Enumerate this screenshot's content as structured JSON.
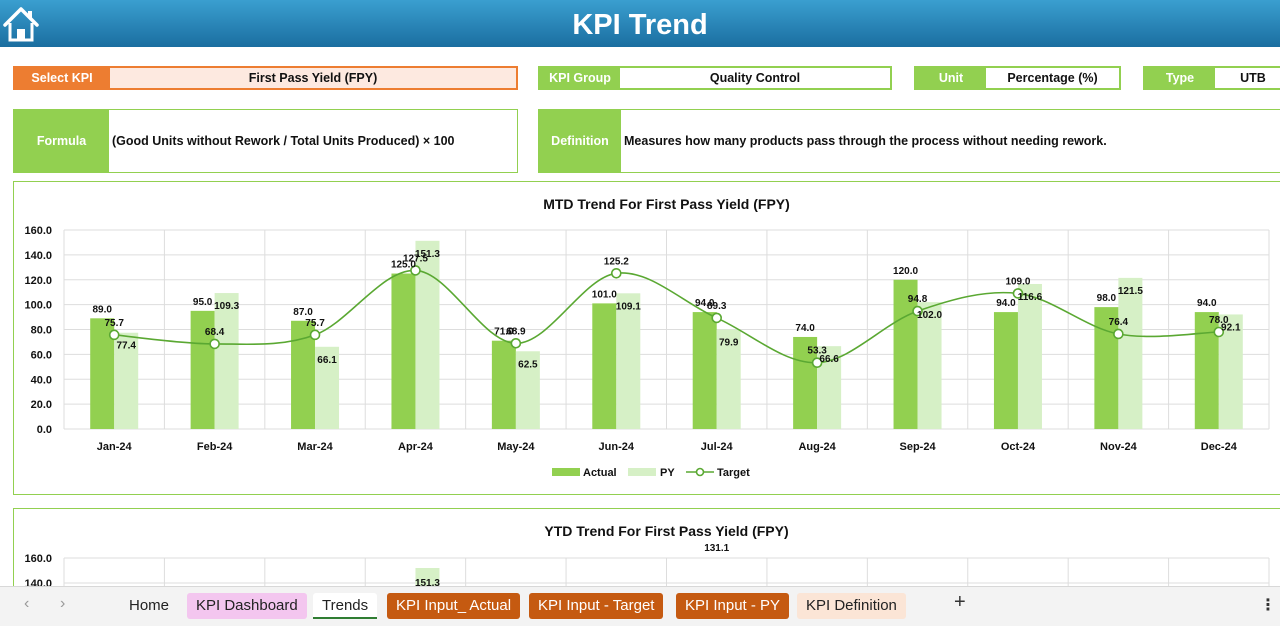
{
  "header": {
    "title": "KPI Trend",
    "home_icon": "house-icon"
  },
  "fields": {
    "select_kpi": {
      "label": "Select KPI",
      "value": "First Pass Yield (FPY)"
    },
    "kpi_group": {
      "label": "KPI Group",
      "value": "Quality Control"
    },
    "unit": {
      "label": "Unit",
      "value": "Percentage (%)"
    },
    "type": {
      "label": "Type",
      "value": "UTB"
    },
    "formula": {
      "label": "Formula",
      "value": "(Good Units without Rework / Total Units Produced) × 100"
    },
    "definition": {
      "label": "Definition",
      "value": "Measures how many products pass through the process without needing rework."
    }
  },
  "colors": {
    "actual": "#92d050",
    "py": "#d6f0c6",
    "target": "#5aa832",
    "accent_orange": "#ed7d31"
  },
  "chart_data": [
    {
      "type": "bar",
      "title": "MTD Trend For First Pass Yield (FPY)",
      "categories": [
        "Jan-24",
        "Feb-24",
        "Mar-24",
        "Apr-24",
        "May-24",
        "Jun-24",
        "Jul-24",
        "Aug-24",
        "Sep-24",
        "Oct-24",
        "Nov-24",
        "Dec-24"
      ],
      "yticks": [
        "0.0",
        "20.0",
        "40.0",
        "60.0",
        "80.0",
        "100.0",
        "120.0",
        "140.0",
        "160.0"
      ],
      "ylim": [
        0,
        160
      ],
      "series": [
        {
          "name": "Actual",
          "kind": "bar",
          "values": [
            89.0,
            95.0,
            87.0,
            125.0,
            71.0,
            101.0,
            94.0,
            74.0,
            120.0,
            94.0,
            98.0,
            94.0
          ],
          "labels": [
            "89.0",
            "95.0",
            "87.0",
            "125.0",
            "71.0",
            "101.0",
            "94.0",
            "74.0",
            "120.0",
            "94.0",
            "98.0",
            "94.0"
          ]
        },
        {
          "name": "PY",
          "kind": "bar",
          "values": [
            77.4,
            109.3,
            66.1,
            151.3,
            62.5,
            109.1,
            79.9,
            66.6,
            102.0,
            116.6,
            121.5,
            92.1
          ],
          "labels": [
            "77.4",
            "109.3",
            "66.1",
            "151.3",
            "62.5",
            "109.1",
            "79.9",
            "66.6",
            "102.0",
            "116.6",
            "121.5",
            "92.1"
          ]
        },
        {
          "name": "Target",
          "kind": "line",
          "values": [
            75.7,
            68.4,
            75.7,
            127.5,
            68.9,
            125.2,
            89.3,
            53.3,
            94.8,
            109.0,
            76.4,
            78.0
          ],
          "labels": [
            "75.7",
            "68.4",
            "75.7",
            "127.5",
            "68.9",
            "125.2",
            "89.3",
            "53.3",
            "94.8",
            "109.0",
            "76.4",
            "78.0"
          ]
        }
      ],
      "legend": [
        "Actual",
        "PY",
        "Target"
      ],
      "legend_position": "bottom",
      "grid": true
    },
    {
      "type": "bar",
      "title": "YTD Trend For First Pass Yield (FPY)",
      "yticks_visible": [
        "160.0",
        "140.0"
      ],
      "visible_labels": [
        {
          "category_index": 3,
          "text": "151.3"
        },
        {
          "category_index": 6,
          "text": "131.1"
        }
      ],
      "ylim": [
        0,
        160
      ],
      "grid": true
    }
  ],
  "tabs": {
    "prev_icon": "chevron-left-icon",
    "next_icon": "chevron-right-icon",
    "items": [
      "Home",
      "KPI Dashboard",
      "Trends",
      "KPI Input_ Actual",
      "KPI Input - Target",
      "KPI Input - PY",
      "KPI Definition"
    ],
    "active": "Trends",
    "add_icon": "plus-icon",
    "more_icon": "more-vertical-icon"
  }
}
